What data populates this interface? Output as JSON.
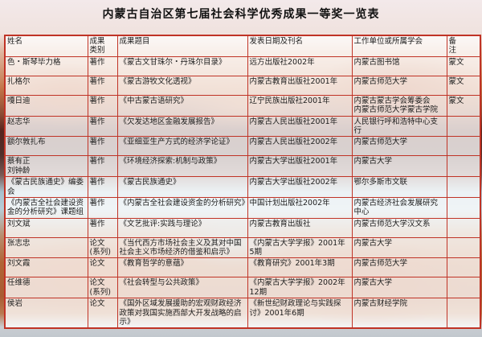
{
  "title": "内蒙古自治区第七届社会科学优秀成果一等奖一览表",
  "table": {
    "columns": [
      "姓名",
      "成果\n类别",
      "成果题目",
      "发表日期及刊名",
      "工作单位或所属学会",
      "备\n注"
    ],
    "rows": [
      [
        "色・斯琴毕力格",
        "著作",
        "《蒙古文甘珠尔・丹珠尔目录》",
        "远方出版社2002年",
        "内蒙古图书馆",
        "蒙文"
      ],
      [
        "扎格尔",
        "著作",
        "《蒙古游牧文化透视》",
        "内蒙古教育出版社2001年",
        "内蒙古师范大学",
        "蒙文"
      ],
      [
        "嘎日迪",
        "著作",
        "《中古蒙古语研究》",
        "辽宁民族出版社2001年",
        "内蒙古蒙古学会筹委会\n内蒙古师范大学蒙古学院",
        "蒙文"
      ],
      [
        "赵志华",
        "著作",
        "《欠发达地区金融发展报告》",
        "内蒙古人民出版社2001年",
        "人民银行呼和浩特中心支行",
        ""
      ],
      [
        "额尔敦扎布",
        "著作",
        "《亚细亚生产方式的经济学论证》",
        "内蒙古人民出版社2002年",
        "内蒙古师范大学",
        ""
      ],
      [
        "蔡有正\n刘钟龄",
        "著作",
        "《环境经济探索:机制与政策》",
        "内蒙古大学出版社2001年",
        "内蒙古大学",
        ""
      ],
      [
        "《蒙古民族通史》编委会",
        "著作",
        "《蒙古民族通史》",
        "内蒙古大学出版社2002年",
        "鄂尔多斯市文联",
        ""
      ],
      [
        "《内蒙古全社会建设资金的分析研究》课题组",
        "著作",
        "《内蒙古全社会建设资金的分析研究》",
        "中国计划出版社2002年",
        "内蒙古经济社会发展研究中心",
        ""
      ],
      [
        "刘文斌",
        "著作",
        "《文艺批评:实践与理论》",
        "内蒙古教育出版社",
        "内蒙古师范大学汉文系",
        ""
      ],
      [
        "张志忠",
        "论文\n(系列)",
        "《当代西方市场社会主义及其对中国社会主义市场经济的借鉴和启示》",
        "《内蒙古大学学报》2001年5期",
        "内蒙古大学",
        ""
      ],
      [
        "刘文霞",
        "论文",
        "《教育哲学的意蕴》",
        "《教育研究》2001年3期",
        "内蒙古师范大学",
        ""
      ],
      [
        "任维德",
        "论文\n(系列)",
        "《社会转型与公共政策》",
        "《内蒙古大学学报》2002年12期",
        "内蒙古大学",
        ""
      ],
      [
        "侯岩",
        "论文",
        "《国外区域发展援助的宏观财政经济政策对我国实施西部大开发战略的启示》",
        "《新世纪财政理论与实践探讨》2001年6期",
        "内蒙古财经学院",
        ""
      ]
    ]
  },
  "colors": {
    "table_border": "#c03326",
    "cell_background": "rgba(255,255,255,0.78)",
    "title_color": "#111111"
  }
}
